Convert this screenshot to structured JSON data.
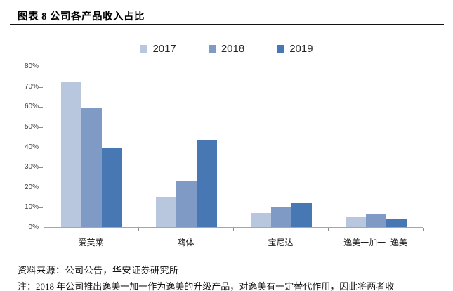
{
  "header": {
    "title": "图表 8 公司各产品收入占比"
  },
  "legend": {
    "items": [
      {
        "label": "2017",
        "color": "#b8c6de"
      },
      {
        "label": "2018",
        "color": "#809ac6"
      },
      {
        "label": "2019",
        "color": "#4878b4"
      }
    ]
  },
  "chart_data": {
    "type": "bar",
    "title": "公司各产品收入占比",
    "categories": [
      "爱芙莱",
      "嗨体",
      "宝尼达",
      "逸美一加一+逸美"
    ],
    "series": [
      {
        "name": "2017",
        "color": "#b8c6de",
        "values": [
          72,
          15,
          7,
          5
        ]
      },
      {
        "name": "2018",
        "color": "#809ac6",
        "values": [
          59,
          23,
          10,
          6.5
        ]
      },
      {
        "name": "2019",
        "color": "#4878b4",
        "values": [
          39,
          43.5,
          12,
          4
        ]
      }
    ],
    "xlabel": "",
    "ylabel": "",
    "ylim": [
      0,
      80
    ],
    "y_tick_step": 10,
    "y_tick_labels": [
      "0%",
      "10%",
      "20%",
      "30%",
      "40%",
      "50%",
      "60%",
      "70%",
      "80%"
    ],
    "grid": false,
    "legend_position": "top",
    "axis_color": "#a6a6a6"
  },
  "footer": {
    "source": "资料来源：公司公告，华安证券研究所",
    "note": "注：2018 年公司推出逸美一加一作为逸美的升级产品，对逸美有一定替代作用，因此将两者收"
  }
}
